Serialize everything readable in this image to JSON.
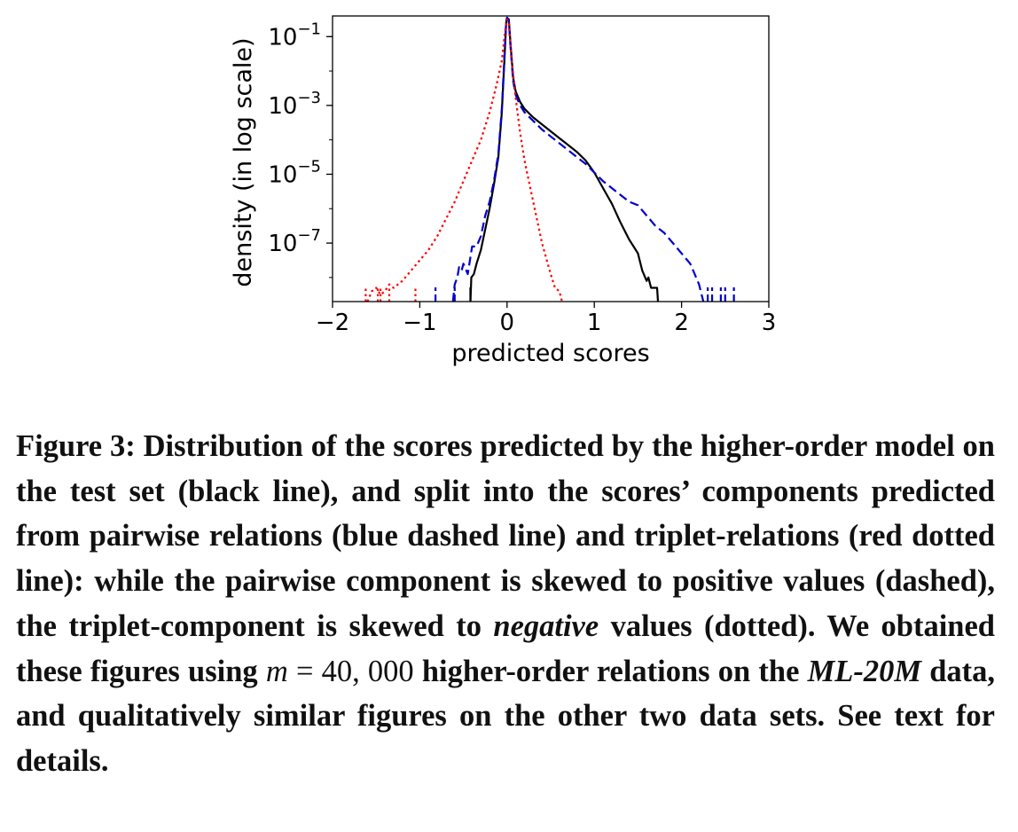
{
  "chart_data": {
    "type": "line",
    "xlabel": "predicted scores",
    "ylabel": "density (in log scale)",
    "yscale": "log",
    "xlim": [
      -2,
      3
    ],
    "ylim_exponent": [
      -8.7,
      -0.4
    ],
    "xticks": [
      -2,
      -1,
      0,
      1,
      2,
      3
    ],
    "xtick_labels": [
      "−2",
      "−1",
      "0",
      "1",
      "2",
      "3"
    ],
    "yticks": [
      {
        "exp": -1,
        "base": "10",
        "sup": "−1"
      },
      {
        "exp": -3,
        "base": "10",
        "sup": "−3"
      },
      {
        "exp": -5,
        "base": "10",
        "sup": "−5"
      },
      {
        "exp": -7,
        "base": "10",
        "sup": "−7"
      }
    ],
    "grid": false,
    "series": [
      {
        "style": "solid",
        "color": "#000000",
        "x_log10y": [
          [
            -0.42,
            -8.7
          ],
          [
            -0.41,
            -8.0
          ],
          [
            -0.38,
            -7.9
          ],
          [
            -0.35,
            -7.6
          ],
          [
            -0.3,
            -7.2
          ],
          [
            -0.25,
            -6.6
          ],
          [
            -0.2,
            -6.0
          ],
          [
            -0.15,
            -5.3
          ],
          [
            -0.1,
            -4.5
          ],
          [
            -0.06,
            -3.2
          ],
          [
            -0.03,
            -1.7
          ],
          [
            -0.01,
            -0.6
          ],
          [
            0.0,
            -0.45
          ],
          [
            0.02,
            -0.5
          ],
          [
            0.04,
            -1.2
          ],
          [
            0.07,
            -2.2
          ],
          [
            0.1,
            -2.6
          ],
          [
            0.15,
            -2.9
          ],
          [
            0.2,
            -3.1
          ],
          [
            0.3,
            -3.35
          ],
          [
            0.4,
            -3.55
          ],
          [
            0.5,
            -3.75
          ],
          [
            0.6,
            -3.95
          ],
          [
            0.7,
            -4.15
          ],
          [
            0.8,
            -4.35
          ],
          [
            0.9,
            -4.6
          ],
          [
            1.0,
            -4.95
          ],
          [
            1.1,
            -5.4
          ],
          [
            1.2,
            -5.85
          ],
          [
            1.3,
            -6.4
          ],
          [
            1.4,
            -6.9
          ],
          [
            1.45,
            -7.1
          ],
          [
            1.5,
            -7.3
          ],
          [
            1.55,
            -7.8
          ],
          [
            1.6,
            -8.1
          ],
          [
            1.62,
            -8.0
          ],
          [
            1.65,
            -8.3
          ],
          [
            1.68,
            -8.3
          ],
          [
            1.72,
            -8.3
          ],
          [
            1.73,
            -8.7
          ]
        ]
      },
      {
        "style": "dashed",
        "color": "#0000cc",
        "x_log10y": [
          [
            -0.62,
            -8.7
          ],
          [
            -0.6,
            -8.2
          ],
          [
            -0.57,
            -8.0
          ],
          [
            -0.55,
            -7.7
          ],
          [
            -0.52,
            -7.8
          ],
          [
            -0.5,
            -7.6
          ],
          [
            -0.45,
            -7.9
          ],
          [
            -0.4,
            -7.1
          ],
          [
            -0.35,
            -7.1
          ],
          [
            -0.3,
            -6.8
          ],
          [
            -0.25,
            -6.2
          ],
          [
            -0.2,
            -5.8
          ],
          [
            -0.15,
            -5.2
          ],
          [
            -0.1,
            -4.4
          ],
          [
            -0.06,
            -3.1
          ],
          [
            -0.03,
            -1.6
          ],
          [
            -0.01,
            -0.55
          ],
          [
            0.0,
            -0.45
          ],
          [
            0.02,
            -0.55
          ],
          [
            0.04,
            -1.3
          ],
          [
            0.07,
            -2.3
          ],
          [
            0.1,
            -2.7
          ],
          [
            0.15,
            -3.0
          ],
          [
            0.2,
            -3.2
          ],
          [
            0.3,
            -3.45
          ],
          [
            0.4,
            -3.7
          ],
          [
            0.5,
            -3.9
          ],
          [
            0.6,
            -4.1
          ],
          [
            0.7,
            -4.3
          ],
          [
            0.8,
            -4.5
          ],
          [
            0.9,
            -4.7
          ],
          [
            1.0,
            -4.95
          ],
          [
            1.1,
            -5.2
          ],
          [
            1.2,
            -5.4
          ],
          [
            1.3,
            -5.6
          ],
          [
            1.4,
            -5.8
          ],
          [
            1.5,
            -5.9
          ],
          [
            1.6,
            -6.2
          ],
          [
            1.7,
            -6.5
          ],
          [
            1.8,
            -6.7
          ],
          [
            1.9,
            -7.0
          ],
          [
            2.0,
            -7.3
          ],
          [
            2.1,
            -7.6
          ],
          [
            2.15,
            -7.9
          ],
          [
            2.2,
            -8.2
          ],
          [
            2.25,
            -8.7
          ]
        ]
      },
      {
        "style": "dotted",
        "color": "#ff0000",
        "x_log10y": [
          [
            -1.6,
            -8.7
          ],
          [
            -1.55,
            -8.4
          ],
          [
            -1.5,
            -8.3
          ],
          [
            -1.45,
            -8.5
          ],
          [
            -1.4,
            -8.4
          ],
          [
            -1.35,
            -8.2
          ],
          [
            -1.3,
            -8.3
          ],
          [
            -1.2,
            -8.1
          ],
          [
            -1.1,
            -7.8
          ],
          [
            -1.0,
            -7.5
          ],
          [
            -0.9,
            -7.2
          ],
          [
            -0.8,
            -6.8
          ],
          [
            -0.7,
            -6.3
          ],
          [
            -0.6,
            -5.8
          ],
          [
            -0.5,
            -5.2
          ],
          [
            -0.4,
            -4.6
          ],
          [
            -0.3,
            -4.0
          ],
          [
            -0.2,
            -3.2
          ],
          [
            -0.12,
            -2.4
          ],
          [
            -0.06,
            -1.7
          ],
          [
            -0.02,
            -0.8
          ],
          [
            0.0,
            -0.5
          ],
          [
            0.02,
            -0.6
          ],
          [
            0.05,
            -1.6
          ],
          [
            0.1,
            -2.8
          ],
          [
            0.15,
            -3.8
          ],
          [
            0.2,
            -4.6
          ],
          [
            0.3,
            -5.8
          ],
          [
            0.4,
            -7.0
          ],
          [
            0.5,
            -7.9
          ],
          [
            0.55,
            -8.3
          ],
          [
            0.6,
            -8.4
          ],
          [
            0.63,
            -8.7
          ]
        ]
      }
    ],
    "spikes": {
      "blue": [
        -0.82,
        -0.6,
        2.3,
        2.35,
        2.45,
        2.5,
        2.6
      ],
      "red": [
        -1.62,
        -1.48,
        -1.45,
        -1.35,
        -1.05
      ],
      "black": [
        -0.42
      ]
    }
  },
  "caption": {
    "p1": "Figure 3: Distribution of the scores predicted by the higher-order model on the test set (black line), and split into the scores’ components predicted from pairwise relations (blue dashed line) and triplet-relations (red dotted line): while the pairwise component is skewed to positive values (dashed), the triplet-component is skewed to ",
    "em1": "negative",
    "p2": " values (dotted). We obtained these figures using ",
    "math_var": "m",
    "math_eq": " = ",
    "math_num": "40, 000",
    "p3": " higher-order relations on the ",
    "em2": "ML-20M",
    "p4": " data, and qualitatively similar figures on the other two data sets. See text for details."
  }
}
